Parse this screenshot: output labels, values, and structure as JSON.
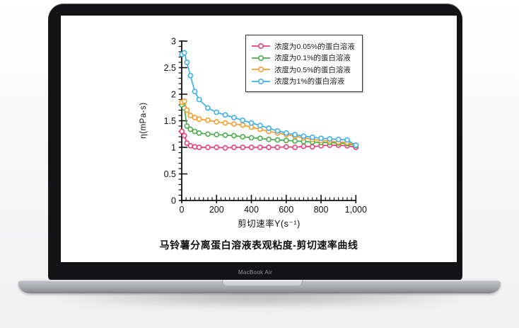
{
  "device": {
    "label": "MacBook Air"
  },
  "chart_data": {
    "type": "line",
    "title": "",
    "caption": "马铃薯分离蛋白溶液表观粘度-剪切速率曲线",
    "xlabel": "剪切速率Y(s⁻¹)",
    "ylabel": "η(mPa-s)",
    "xlim": [
      0,
      1000
    ],
    "ylim": [
      0,
      3
    ],
    "xtick_values": [
      0,
      200,
      400,
      600,
      800,
      1000
    ],
    "xtick_labels": [
      "0",
      "200",
      "400",
      "600",
      "800",
      "1,000"
    ],
    "x_minor_step": 25,
    "ytick_values": [
      0,
      0.5,
      1,
      1.5,
      2,
      2.5,
      3
    ],
    "ytick_labels": [
      "0",
      "0.5",
      "1",
      "1.5",
      "2",
      "2.5",
      "3"
    ],
    "y_minor_step": 0.1,
    "grid": false,
    "legend_position": "top-right-inside",
    "marker": "open-circle",
    "axis_color": "#111111",
    "x": [
      1,
      15,
      30,
      50,
      75,
      100,
      150,
      200,
      250,
      300,
      350,
      400,
      450,
      500,
      550,
      600,
      650,
      700,
      750,
      800,
      850,
      900,
      950,
      1000
    ],
    "series": [
      {
        "name": "浓度为0.05%的蛋白溶液",
        "color": "#e8417e",
        "values": [
          1.3,
          1.22,
          1.08,
          1.03,
          1.01,
          1.0,
          1.0,
          1.0,
          0.99,
          1.0,
          1.0,
          1.0,
          1.0,
          1.0,
          1.0,
          1.01,
          1.0,
          1.02,
          1.01,
          1.03,
          1.04,
          1.04,
          1.03,
          1.0
        ]
      },
      {
        "name": "浓度为0.1%的蛋白溶液",
        "color": "#4cae4f",
        "values": [
          1.8,
          1.74,
          1.4,
          1.34,
          1.3,
          1.27,
          1.25,
          1.24,
          1.23,
          1.22,
          1.2,
          1.18,
          1.17,
          1.15,
          1.14,
          1.13,
          1.12,
          1.11,
          1.1,
          1.09,
          1.09,
          1.08,
          1.07,
          1.03
        ]
      },
      {
        "name": "浓度为0.5%的蛋白溶液",
        "color": "#f59e2e",
        "values": [
          1.85,
          1.87,
          1.7,
          1.6,
          1.56,
          1.53,
          1.51,
          1.48,
          1.46,
          1.44,
          1.42,
          1.38,
          1.34,
          1.3,
          1.27,
          1.24,
          1.21,
          1.18,
          1.15,
          1.13,
          1.12,
          1.1,
          1.09,
          1.04
        ]
      },
      {
        "name": "浓度为1%的蛋白溶液",
        "color": "#41b1e6",
        "values": [
          2.75,
          2.78,
          2.6,
          2.35,
          2.05,
          1.9,
          1.74,
          1.66,
          1.61,
          1.56,
          1.51,
          1.46,
          1.41,
          1.36,
          1.31,
          1.27,
          1.24,
          1.21,
          1.19,
          1.17,
          1.16,
          1.15,
          1.14,
          1.04
        ]
      }
    ]
  }
}
